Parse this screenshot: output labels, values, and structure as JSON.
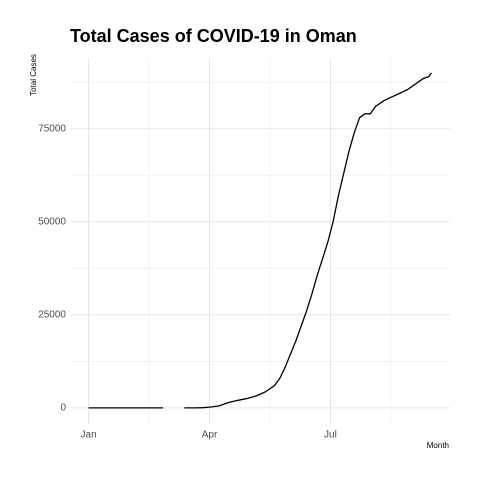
{
  "chart_data": {
    "type": "line",
    "title": "Total Cases of COVID-19 in Oman",
    "y_label": "Total Cases",
    "x_label": "Month",
    "x": [
      0,
      7,
      14,
      21,
      28,
      35,
      42,
      49,
      56,
      60,
      64,
      68,
      72,
      79,
      86,
      91,
      98,
      105,
      112,
      119,
      126,
      133,
      140,
      144,
      148,
      152,
      156,
      160,
      164,
      168,
      172,
      176,
      180,
      184,
      188,
      192,
      196,
      200,
      204,
      208,
      212,
      216,
      222,
      228,
      234,
      240,
      246,
      252,
      256,
      258
    ],
    "series": [
      {
        "name": "Total Cases",
        "color": "#000000",
        "values": [
          0,
          0,
          0,
          0,
          0,
          0,
          0,
          0,
          0,
          null,
          0,
          null,
          0,
          0,
          50,
          200,
          500,
          1400,
          2000,
          2500,
          3200,
          4300,
          6000,
          8000,
          11000,
          14500,
          18000,
          22000,
          26000,
          30500,
          35500,
          40000,
          44500,
          50000,
          57000,
          63000,
          69000,
          74000,
          78000,
          79000,
          79000,
          81000,
          82500,
          83500,
          84500,
          85500,
          87000,
          88500,
          89000,
          90000
        ]
      }
    ],
    "xlim": [
      -14,
      272
    ],
    "xticks": [
      {
        "value": 0,
        "label": "Jan"
      },
      {
        "value": 91,
        "label": "Apr"
      },
      {
        "value": 182,
        "label": "Jul"
      }
    ],
    "ylim": [
      -4600,
      94000
    ],
    "yticks": [
      0,
      25000,
      50000,
      75000
    ],
    "grid": true
  }
}
